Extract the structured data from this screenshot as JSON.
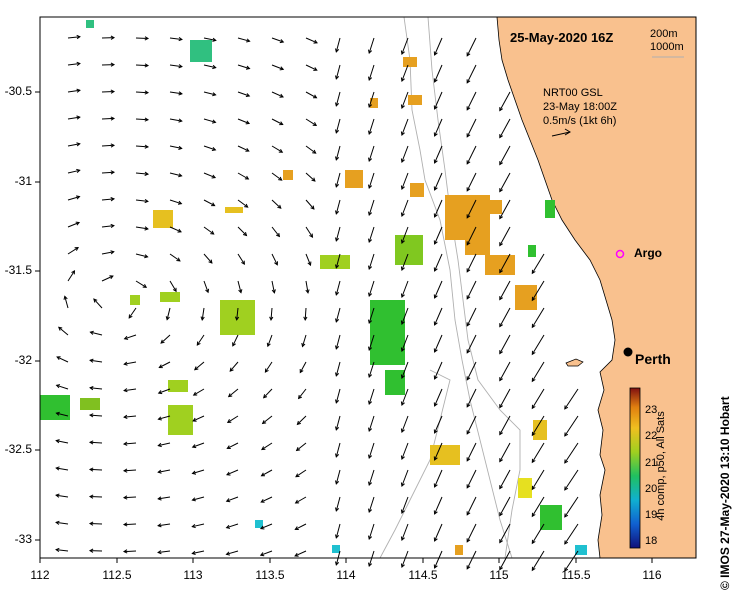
{
  "map": {
    "date_label": "25-May-2020 16Z",
    "depth_labels": [
      "200m",
      "1000m"
    ],
    "current_info": [
      "NRT00 GSL",
      "23-May 18:00Z",
      "0.5m/s (1kt 6h)"
    ],
    "argo_label": "Argo",
    "city_label": "Perth",
    "credit": "© IMOS 27-May-2020 13:10 Hobart",
    "x_ticks": [
      "112",
      "112.5",
      "113",
      "113.5",
      "114",
      "114.5",
      "115",
      "115.5",
      "116"
    ],
    "y_ticks": [
      "-30.5",
      "-31",
      "-31.5",
      "-32",
      "-32.5",
      "-33"
    ],
    "colorbar": {
      "title": "4h comp, p50, All Sats",
      "ticks": [
        "23",
        "22",
        "21",
        "20",
        "19",
        "18"
      ]
    },
    "colors": {
      "land": "#f9c18e",
      "warm": "#e6a020",
      "mid": "#a0d020",
      "cool": "#30c030",
      "cold": "#20b0b0"
    }
  }
}
